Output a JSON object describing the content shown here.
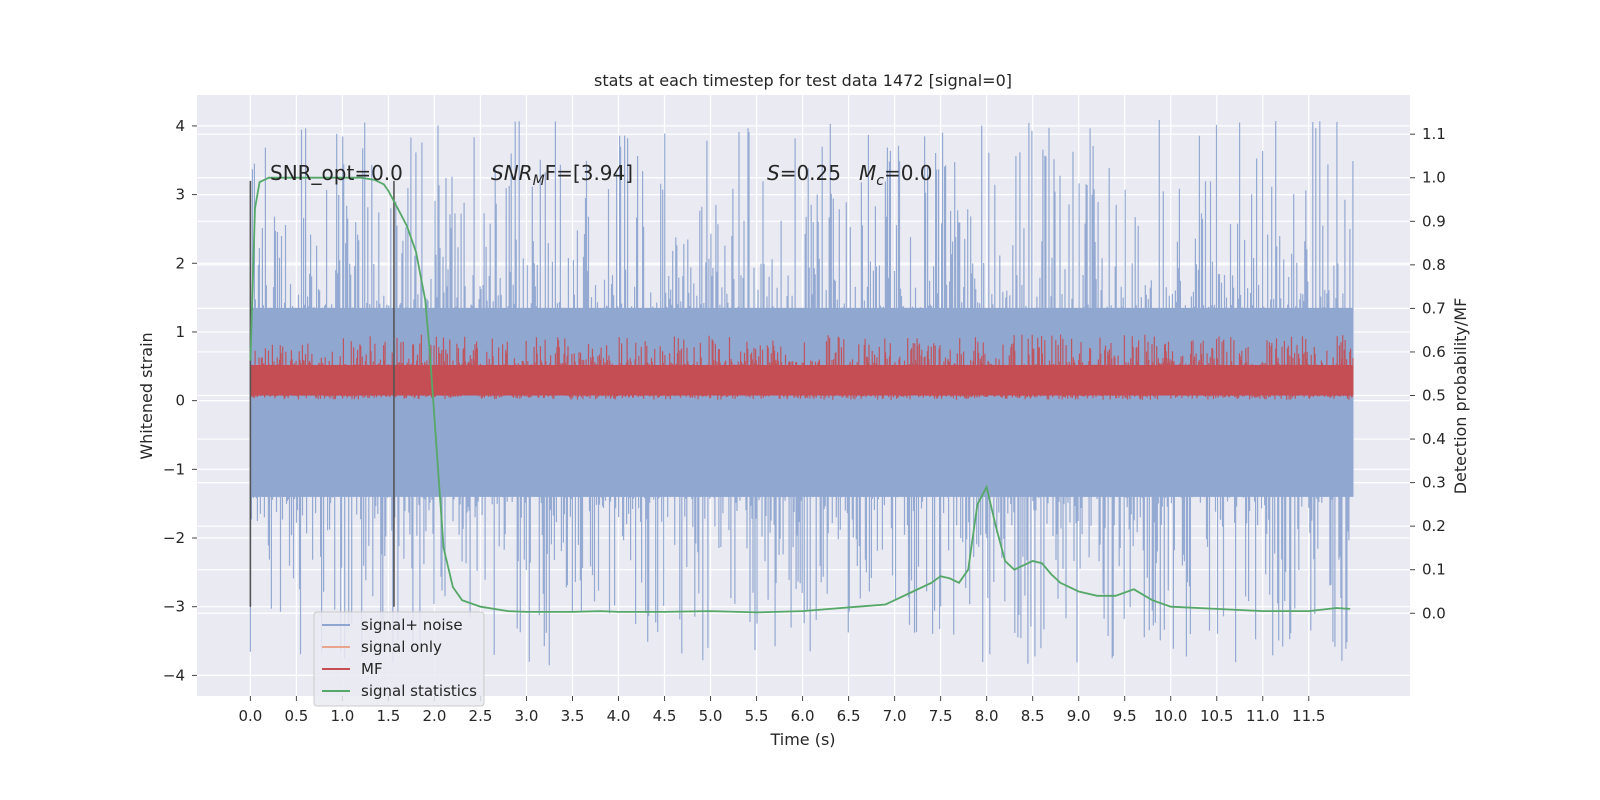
{
  "chart_data": {
    "type": "line",
    "title": "stats at each timestep for test data 1472 [signal=0]",
    "xlabel": "Time (s)",
    "ylabel_left": "Whitened strain",
    "ylabel_right": "Detection probability/MF",
    "xlim": [
      -0.58,
      12.6
    ],
    "ylim_left": [
      -4.3,
      4.45
    ],
    "ylim_right": [
      -0.19,
      1.19
    ],
    "grid": true,
    "legend_position": "lower-left",
    "x_ticks": [
      "0.0",
      "0.5",
      "1.0",
      "1.5",
      "2.0",
      "2.5",
      "3.0",
      "3.5",
      "4.0",
      "4.5",
      "5.0",
      "5.5",
      "6.0",
      "6.5",
      "7.0",
      "7.5",
      "8.0",
      "8.5",
      "9.0",
      "9.5",
      "10.0",
      "10.5",
      "11.0",
      "11.5"
    ],
    "y_ticks_left": [
      "4",
      "3",
      "2",
      "1",
      "0",
      "−1",
      "−2",
      "−3",
      "−4"
    ],
    "y_ticks_right": [
      "1.1",
      "1.0",
      "0.9",
      "0.8",
      "0.7",
      "0.6",
      "0.5",
      "0.4",
      "0.3",
      "0.2",
      "0.1",
      "0.0"
    ],
    "annotations": {
      "snr_opt": "SNR_opt=0.0",
      "snr_mf_base": "SNR",
      "snr_mf_sub": "M",
      "snr_mf_rest": "F=[3.94]",
      "s_label": "S",
      "s_value": "=0.25",
      "mc_base": "M",
      "mc_sub": "c",
      "mc_value": "=0.0"
    },
    "vertical_markers": {
      "times": [
        0.0,
        1.56
      ],
      "range_left": [
        -3.0,
        3.2
      ]
    },
    "series": [
      {
        "name": "signal+ noise",
        "color": "#8fa6d0",
        "axis": "left",
        "kind": "noise",
        "x_range": [
          0.0,
          11.98
        ],
        "typical_range": [
          -1.4,
          1.35
        ],
        "extreme_range": [
          -3.87,
          4.1
        ]
      },
      {
        "name": "signal only",
        "color": "#e8a58c",
        "axis": "left",
        "values": []
      },
      {
        "name": "MF",
        "color": "#c44e52",
        "axis": "right",
        "kind": "noise",
        "x_range": [
          0.0,
          11.98
        ],
        "typical_range": [
          0.5,
          0.57
        ],
        "extreme_range": [
          0.49,
          0.64
        ]
      },
      {
        "name": "signal statistics",
        "color": "#55a868",
        "axis": "right",
        "x": [
          0.0,
          0.05,
          0.1,
          0.15,
          0.2,
          0.3,
          0.5,
          0.8,
          1.0,
          1.2,
          1.35,
          1.45,
          1.5,
          1.6,
          1.7,
          1.8,
          1.9,
          1.95,
          2.0,
          2.05,
          2.1,
          2.2,
          2.3,
          2.5,
          2.8,
          3.0,
          3.5,
          3.8,
          4.0,
          4.5,
          5.0,
          5.5,
          6.0,
          6.3,
          6.6,
          6.9,
          7.0,
          7.2,
          7.4,
          7.5,
          7.6,
          7.7,
          7.8,
          7.9,
          8.0,
          8.1,
          8.2,
          8.3,
          8.4,
          8.5,
          8.6,
          8.7,
          8.8,
          9.0,
          9.2,
          9.4,
          9.6,
          9.8,
          10.0,
          10.5,
          11.0,
          11.5,
          11.8,
          11.95
        ],
        "values": [
          0.58,
          0.93,
          0.99,
          0.995,
          1.0,
          1.0,
          1.0,
          1.0,
          1.0,
          1.0,
          0.995,
          0.985,
          0.97,
          0.93,
          0.89,
          0.83,
          0.72,
          0.6,
          0.45,
          0.3,
          0.15,
          0.06,
          0.03,
          0.015,
          0.005,
          0.003,
          0.003,
          0.005,
          0.003,
          0.003,
          0.005,
          0.002,
          0.005,
          0.01,
          0.015,
          0.02,
          0.03,
          0.05,
          0.07,
          0.085,
          0.08,
          0.07,
          0.1,
          0.25,
          0.29,
          0.2,
          0.12,
          0.1,
          0.11,
          0.12,
          0.115,
          0.09,
          0.07,
          0.05,
          0.04,
          0.04,
          0.055,
          0.03,
          0.015,
          0.01,
          0.005,
          0.005,
          0.012,
          0.01
        ]
      }
    ]
  }
}
